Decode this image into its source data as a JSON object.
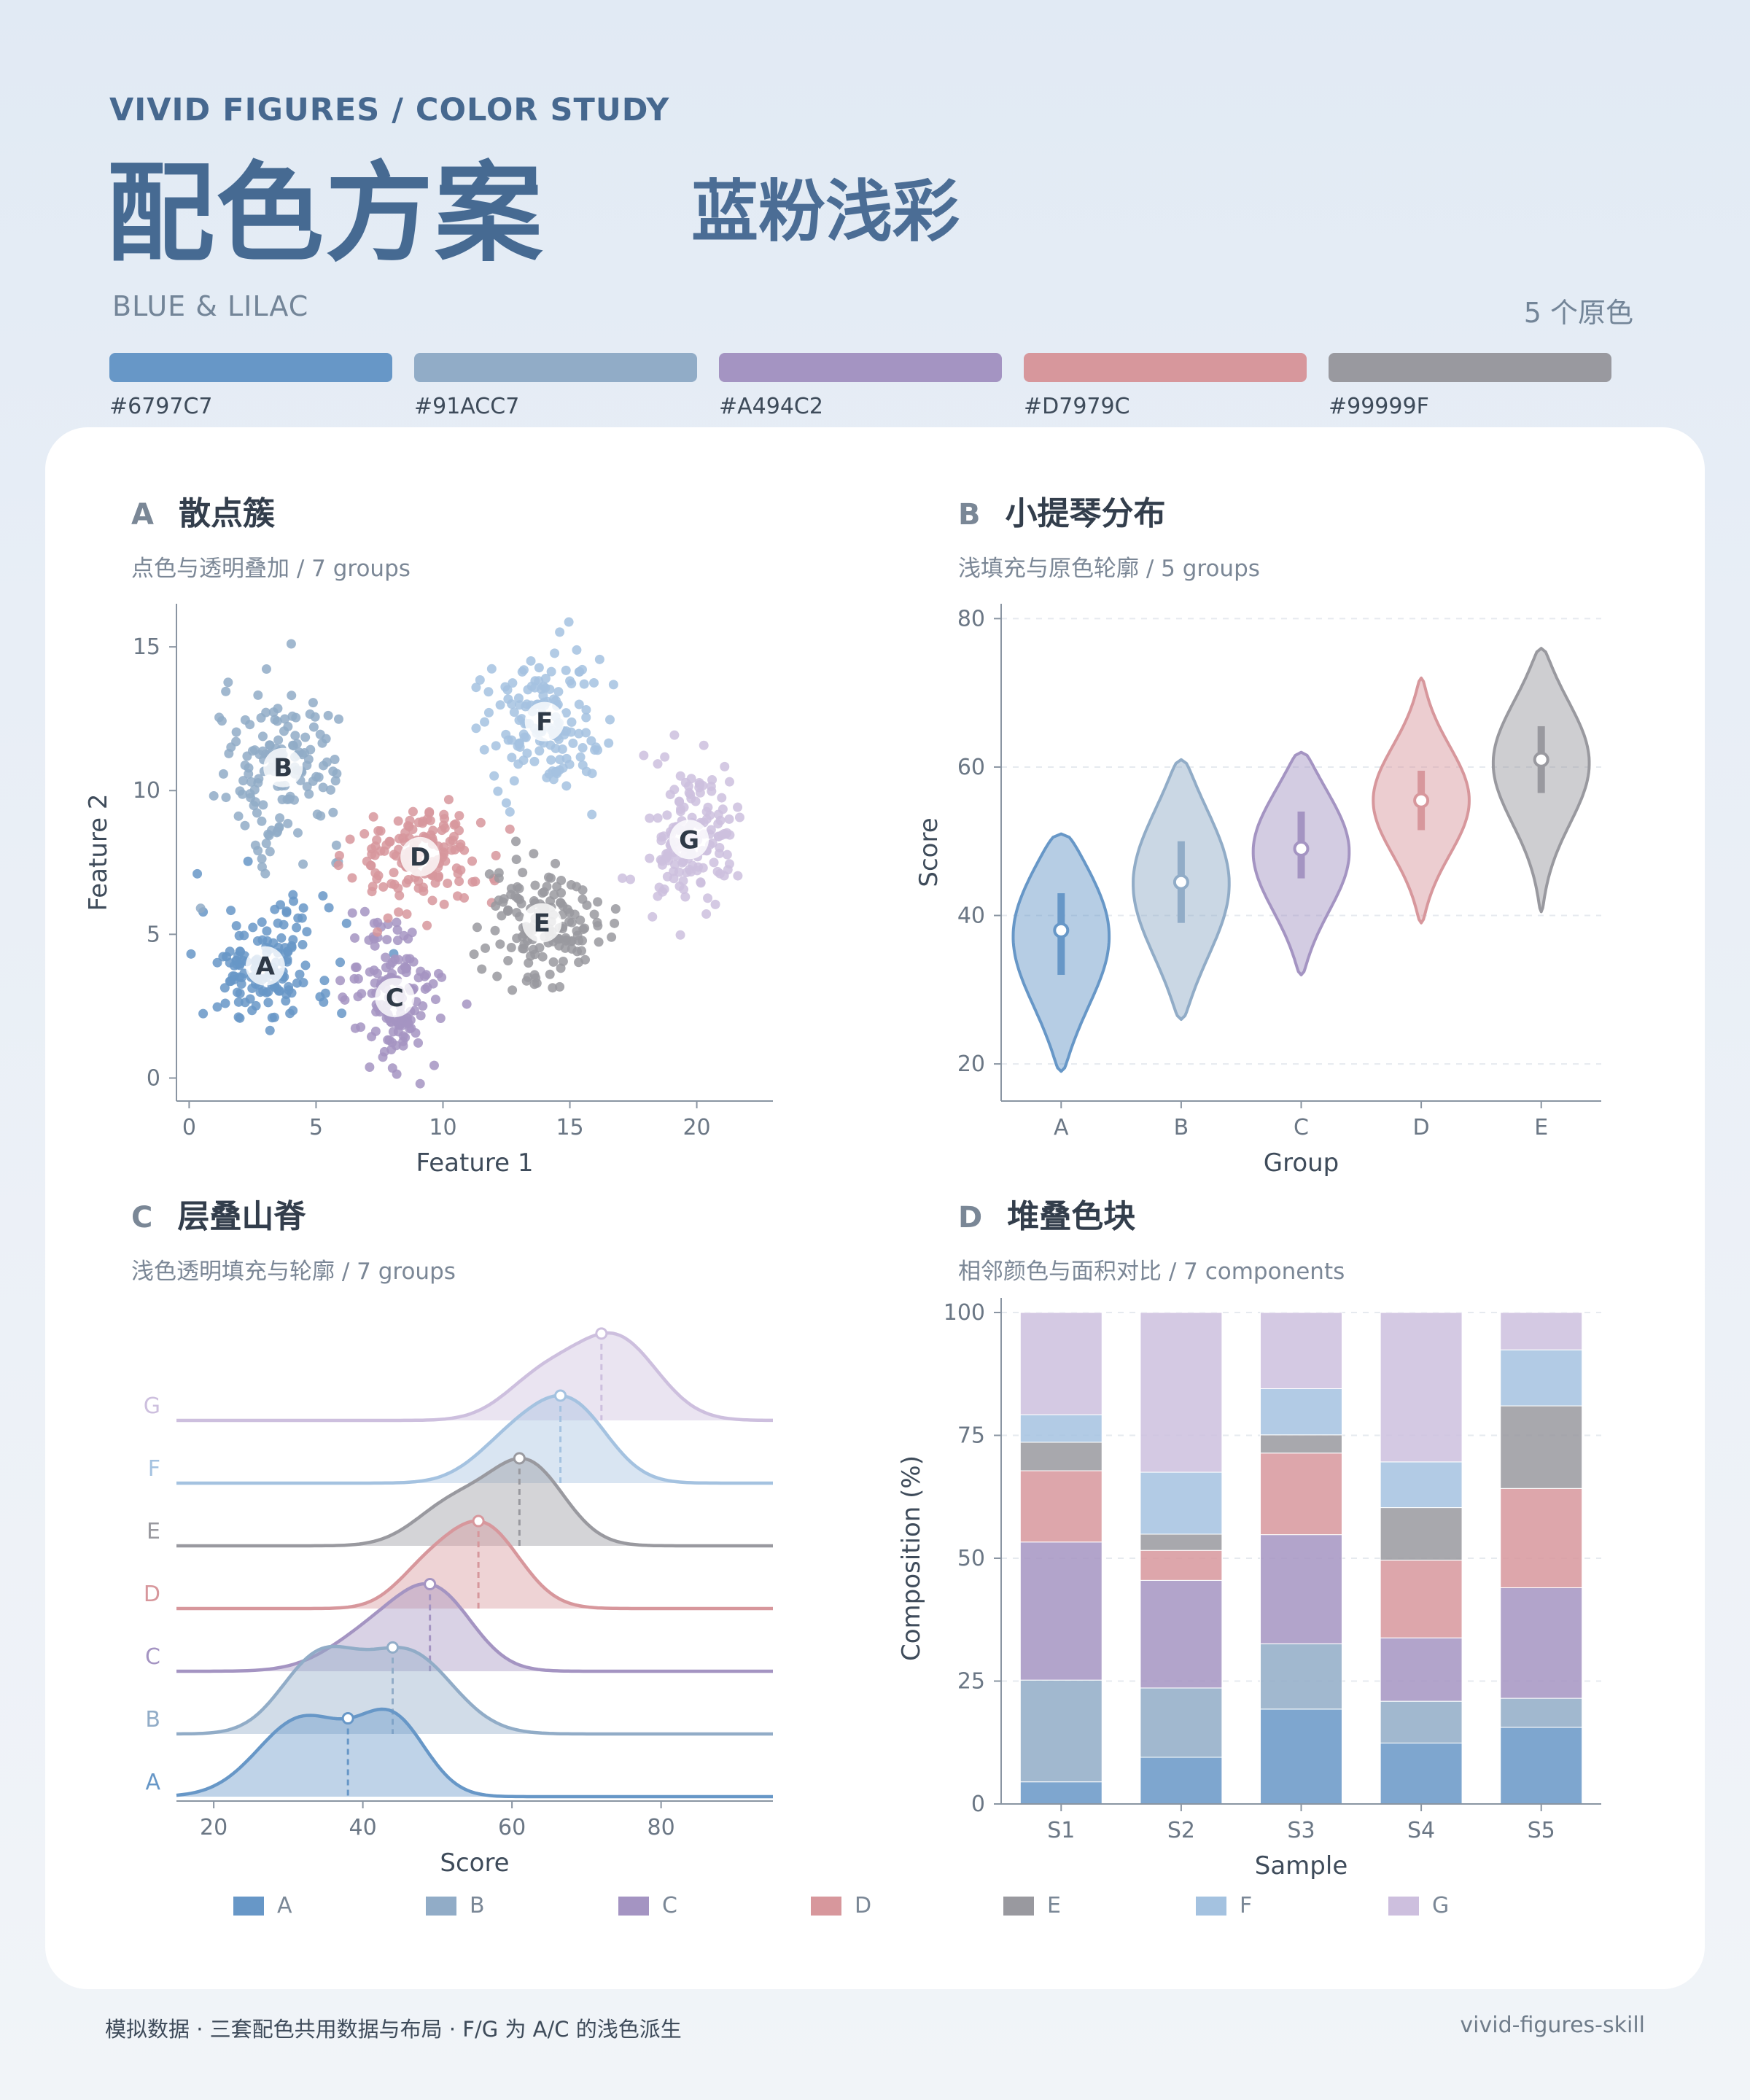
{
  "header": {
    "kicker": "VIVID FIGURES  /  COLOR STUDY",
    "title": "配色方案",
    "scheme_name": "蓝粉浅彩",
    "subtitle_en": "BLUE & LILAC",
    "color_count": "5 个原色"
  },
  "palette": [
    {
      "hex": "#6797C7"
    },
    {
      "hex": "#91ACC7"
    },
    {
      "hex": "#A494C2"
    },
    {
      "hex": "#D7979C"
    },
    {
      "hex": "#99999F"
    }
  ],
  "group_colors": {
    "A": "#6797C7",
    "B": "#91ACC7",
    "C": "#A494C2",
    "D": "#D7979C",
    "E": "#99999F",
    "F": "#A4C2E0",
    "G": "#CDBFDE"
  },
  "panels": {
    "a": {
      "letter": "A",
      "title": "散点簇",
      "subtitle": "点色与透明叠加 / 7 groups"
    },
    "b": {
      "letter": "B",
      "title": "小提琴分布",
      "subtitle": "浅填充与原色轮廓 / 5 groups"
    },
    "c": {
      "letter": "C",
      "title": "层叠山脊",
      "subtitle": "浅色透明填充与轮廓 / 7 groups"
    },
    "d": {
      "letter": "D",
      "title": "堆叠色块",
      "subtitle": "相邻颜色与面积对比 / 7 components"
    }
  },
  "chart_data": [
    {
      "type": "scatter",
      "xlabel": "Feature 1",
      "ylabel": "Feature 2",
      "xlim": [
        -0.5,
        23
      ],
      "ylim": [
        -0.8,
        16.5
      ],
      "xticks": [
        0,
        5,
        10,
        15,
        20
      ],
      "yticks": [
        0,
        5,
        10,
        15
      ],
      "series": [
        {
          "name": "A",
          "cx": 3.0,
          "cy": 3.9,
          "sx": 1.3,
          "sy": 1.1,
          "n": 150
        },
        {
          "name": "B",
          "cx": 3.7,
          "cy": 10.8,
          "sx": 1.2,
          "sy": 1.4,
          "n": 150
        },
        {
          "name": "C",
          "cx": 8.1,
          "cy": 2.8,
          "sx": 0.9,
          "sy": 1.3,
          "n": 150
        },
        {
          "name": "D",
          "cx": 9.1,
          "cy": 7.7,
          "sx": 1.3,
          "sy": 1.0,
          "n": 150
        },
        {
          "name": "E",
          "cx": 13.9,
          "cy": 5.4,
          "sx": 1.1,
          "sy": 1.0,
          "n": 150
        },
        {
          "name": "F",
          "cx": 14.0,
          "cy": 12.4,
          "sx": 1.2,
          "sy": 1.2,
          "n": 150
        },
        {
          "name": "G",
          "cx": 19.7,
          "cy": 8.3,
          "sx": 0.9,
          "sy": 1.2,
          "n": 150
        }
      ]
    },
    {
      "type": "violin",
      "xlabel": "Group",
      "ylabel": "Score",
      "ylim": [
        15,
        82
      ],
      "yticks": [
        20,
        40,
        60,
        80
      ],
      "categories": [
        "A",
        "B",
        "C",
        "D",
        "E"
      ],
      "series": [
        {
          "name": "A",
          "min": 19,
          "max": 51,
          "median": 38,
          "q1": 32,
          "q3": 43
        },
        {
          "name": "B",
          "min": 26,
          "max": 61,
          "median": 44.5,
          "q1": 39,
          "q3": 50
        },
        {
          "name": "C",
          "min": 32,
          "max": 62,
          "median": 49,
          "q1": 45,
          "q3": 54
        },
        {
          "name": "D",
          "min": 39,
          "max": 72,
          "median": 55.5,
          "q1": 51.5,
          "q3": 59.5
        },
        {
          "name": "E",
          "min": 40.5,
          "max": 76,
          "median": 61,
          "q1": 56.5,
          "q3": 65.5
        }
      ]
    },
    {
      "type": "area",
      "subtype": "ridgeline",
      "xlabel": "Score",
      "xlim": [
        15,
        95
      ],
      "xticks": [
        20,
        40,
        60,
        80
      ],
      "series": [
        {
          "name": "A",
          "peak_score": 38,
          "components": [
            [
              32,
              6,
              0.95
            ],
            [
              44,
              4.5,
              0.9
            ]
          ]
        },
        {
          "name": "B",
          "peak_score": 44,
          "components": [
            [
              34,
              5,
              0.9
            ],
            [
              46,
              6,
              1.0
            ]
          ]
        },
        {
          "name": "C",
          "peak_score": 49,
          "components": [
            [
              42,
              6,
              0.6
            ],
            [
              50,
              5,
              1.0
            ]
          ]
        },
        {
          "name": "D",
          "peak_score": 55.5,
          "components": [
            [
              48,
              4,
              0.35
            ],
            [
              56,
              5,
              1.0
            ]
          ]
        },
        {
          "name": "E",
          "peak_score": 61,
          "components": [
            [
              52,
              5,
              0.5
            ],
            [
              62,
              5,
              1.0
            ]
          ]
        },
        {
          "name": "F",
          "peak_score": 66.5,
          "components": [
            [
              60,
              5,
              0.55
            ],
            [
              68,
              5,
              1.0
            ]
          ]
        },
        {
          "name": "G",
          "peak_score": 72,
          "components": [
            [
              64,
              5,
              0.5
            ],
            [
              74,
              5.5,
              1.0
            ]
          ]
        }
      ]
    },
    {
      "type": "bar",
      "subtype": "stacked-percent",
      "xlabel": "Sample",
      "ylabel": "Composition (%)",
      "ylim": [
        0,
        100
      ],
      "yticks": [
        0,
        25,
        50,
        75,
        100
      ],
      "categories": [
        "S1",
        "S2",
        "S3",
        "S4",
        "S5"
      ],
      "series": [
        {
          "name": "A",
          "values": [
            4.5,
            9.5,
            19.3,
            12.4,
            15.6
          ]
        },
        {
          "name": "B",
          "values": [
            20.7,
            14.1,
            13.3,
            8.5,
            5.9
          ]
        },
        {
          "name": "C",
          "values": [
            28.1,
            21.9,
            22.2,
            12.9,
            22.5
          ]
        },
        {
          "name": "D",
          "values": [
            14.5,
            6.1,
            16.6,
            15.8,
            20.2
          ]
        },
        {
          "name": "E",
          "values": [
            5.8,
            3.3,
            3.7,
            10.7,
            16.8
          ]
        },
        {
          "name": "F",
          "values": [
            5.6,
            12.6,
            9.4,
            9.3,
            11.4
          ]
        },
        {
          "name": "G",
          "values": [
            20.8,
            32.5,
            15.5,
            30.4,
            7.6
          ]
        }
      ]
    }
  ],
  "legend": [
    "A",
    "B",
    "C",
    "D",
    "E",
    "F",
    "G"
  ],
  "footer": {
    "note": "模拟数据 · 三套配色共用数据与布局 · F/G 为 A/C 的浅色派生",
    "brand": "vivid-figures-skill"
  }
}
